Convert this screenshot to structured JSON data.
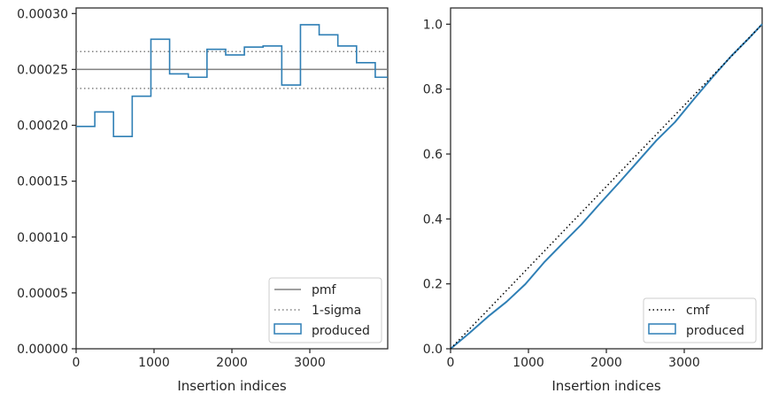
{
  "chart_data": [
    {
      "type": "line",
      "xlabel": "Insertion indices",
      "ylabel": "",
      "xlim": [
        0,
        4000
      ],
      "ylim": [
        0,
        0.000305
      ],
      "xticks": [
        0,
        1000,
        2000,
        3000
      ],
      "xtick_labels": [
        "0",
        "1000",
        "2000",
        "3000"
      ],
      "yticks": [
        0,
        5e-05,
        0.0001,
        0.00015,
        0.0002,
        0.00025,
        0.0003
      ],
      "ytick_labels": [
        "0.00000",
        "0.00005",
        "0.00010",
        "0.00015",
        "0.00020",
        "0.00025",
        "0.00030"
      ],
      "grid": false,
      "legend_position": "lower-right",
      "legend": [
        "pmf",
        "1-sigma",
        "produced"
      ],
      "pmf": 0.00025,
      "sigma_band": [
        0.000233,
        0.000266
      ],
      "produced_histogram": {
        "bin_edges": [
          0,
          240,
          480,
          720,
          960,
          1200,
          1440,
          1680,
          1920,
          2160,
          2400,
          2640,
          2880,
          3120,
          3360,
          3600,
          3840,
          4000
        ],
        "values": [
          0.000199,
          0.000212,
          0.00019,
          0.000226,
          0.000277,
          0.000246,
          0.000243,
          0.000268,
          0.000263,
          0.00027,
          0.000271,
          0.000236,
          0.00029,
          0.000281,
          0.000271,
          0.000256,
          0.000243
        ]
      },
      "colors": {
        "pmf": "#808080",
        "sigma": "#808080",
        "produced": "#2f7fb5"
      }
    },
    {
      "type": "line",
      "xlabel": "Insertion indices",
      "ylabel": "",
      "xlim": [
        0,
        4000
      ],
      "ylim": [
        0,
        1.05
      ],
      "xticks": [
        0,
        1000,
        2000,
        3000
      ],
      "xtick_labels": [
        "0",
        "1000",
        "2000",
        "3000"
      ],
      "yticks": [
        0,
        0.2,
        0.4,
        0.6,
        0.8,
        1.0
      ],
      "ytick_labels": [
        "0.0",
        "0.2",
        "0.4",
        "0.6",
        "0.8",
        "1.0"
      ],
      "grid": false,
      "legend_position": "lower-right",
      "legend": [
        "cmf",
        "produced"
      ],
      "cmf": {
        "x": [
          0,
          4000
        ],
        "y": [
          0,
          1.0
        ]
      },
      "produced_cumulative": {
        "x": [
          0,
          240,
          480,
          720,
          960,
          1200,
          1440,
          1680,
          1920,
          2160,
          2400,
          2640,
          2880,
          3120,
          3360,
          3600,
          3840,
          4000
        ],
        "y": [
          0,
          0.048,
          0.099,
          0.145,
          0.199,
          0.266,
          0.325,
          0.383,
          0.448,
          0.511,
          0.576,
          0.641,
          0.698,
          0.768,
          0.836,
          0.901,
          0.959,
          1.0
        ]
      },
      "colors": {
        "cmf": "#000000",
        "produced": "#2f7fb5"
      }
    }
  ]
}
